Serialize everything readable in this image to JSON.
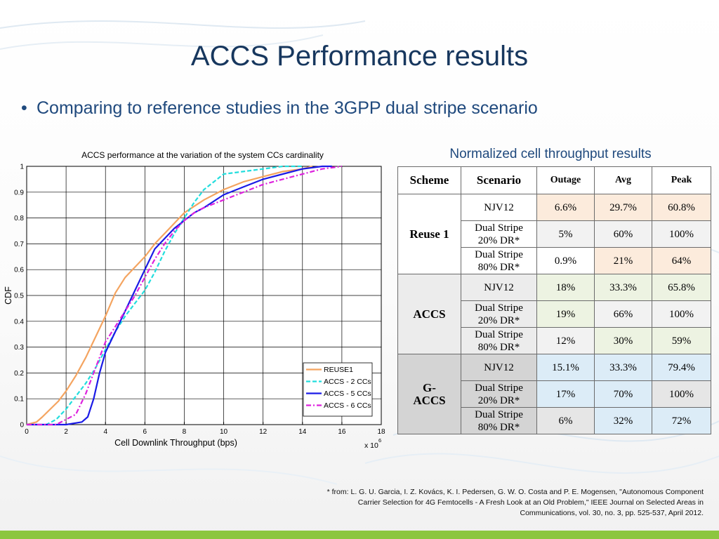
{
  "slide": {
    "title": "ACCS Performance results",
    "bullet": "Comparing to reference studies in the 3GPP dual stripe scenario",
    "footnote": "* from: L. G. U. Garcia, I. Z. Kovács, K. I. Pedersen, G. W. O. Costa and P. E. Mogensen, \"Autonomous Component Carrier Selection for 4G Femtocells - A Fresh Look at an Old Problem,\" IEEE Journal on Selected Areas in Communications, vol. 30, no. 3, pp. 525-537, April 2012.",
    "bottom_bar_color": "#8cc63f"
  },
  "chart_data": {
    "type": "line",
    "title": "ACCS performance at the variation of the system CCs cardinality",
    "xlabel": "Cell Downlink Throughput (bps)",
    "ylabel": "CDF",
    "x_multiplier": "x 10",
    "x_multiplier_exp": "6",
    "xlim": [
      0,
      18
    ],
    "ylim": [
      0,
      1
    ],
    "xticks": [
      "0",
      "2",
      "4",
      "6",
      "8",
      "10",
      "12",
      "14",
      "16",
      "18"
    ],
    "yticks": [
      "0",
      "0.1",
      "0.2",
      "0.3",
      "0.4",
      "0.5",
      "0.6",
      "0.7",
      "0.8",
      "0.9",
      "1"
    ],
    "grid": true,
    "legend_position": "bottom-right",
    "series": [
      {
        "name": "REUSE1",
        "color": "#f4a460",
        "dash": "solid",
        "x": [
          0,
          0.5,
          0.8,
          1.2,
          1.6,
          2.0,
          2.5,
          3.0,
          3.5,
          4.0,
          4.5,
          5.0,
          5.5,
          6.0,
          6.5,
          7.0,
          7.5,
          8.0,
          9.0,
          10.0,
          11.0,
          12.0,
          13.0,
          14.0,
          14.5
        ],
        "y": [
          0,
          0.01,
          0.03,
          0.06,
          0.09,
          0.13,
          0.19,
          0.26,
          0.34,
          0.42,
          0.51,
          0.57,
          0.61,
          0.65,
          0.7,
          0.74,
          0.78,
          0.82,
          0.87,
          0.91,
          0.94,
          0.96,
          0.98,
          0.99,
          1.0
        ]
      },
      {
        "name": "ACCS - 2 CCs",
        "color": "#22dddd",
        "dash": "dashed",
        "x": [
          0,
          1.0,
          1.5,
          2.0,
          2.5,
          3.0,
          3.5,
          4.0,
          4.5,
          5.0,
          5.5,
          6.0,
          6.5,
          7.0,
          7.5,
          8.0,
          8.5,
          9.0,
          9.5,
          10.0,
          11.0,
          12.0,
          13.0,
          14.0
        ],
        "y": [
          0,
          0,
          0.02,
          0.06,
          0.11,
          0.16,
          0.22,
          0.29,
          0.36,
          0.42,
          0.47,
          0.52,
          0.59,
          0.67,
          0.74,
          0.8,
          0.86,
          0.91,
          0.94,
          0.97,
          0.98,
          0.99,
          1.0,
          1.0
        ]
      },
      {
        "name": "ACCS - 5 CCs",
        "color": "#1a1ae6",
        "dash": "solid",
        "x": [
          0,
          2.0,
          2.8,
          3.1,
          3.4,
          3.7,
          4.0,
          4.5,
          5.0,
          5.5,
          6.0,
          6.5,
          7.0,
          7.5,
          8.0,
          8.5,
          9.0,
          10.0,
          11.0,
          12.0,
          13.0,
          14.0,
          15.0,
          15.5
        ],
        "y": [
          0,
          0,
          0.01,
          0.03,
          0.1,
          0.2,
          0.28,
          0.36,
          0.44,
          0.52,
          0.6,
          0.68,
          0.72,
          0.76,
          0.79,
          0.82,
          0.84,
          0.89,
          0.92,
          0.95,
          0.97,
          0.99,
          1.0,
          1.0
        ]
      },
      {
        "name": "ACCS - 6 CCs",
        "color": "#dd22dd",
        "dash": "dashdot",
        "x": [
          0,
          1.5,
          2.5,
          3.0,
          3.5,
          4.0,
          4.5,
          5.0,
          5.5,
          6.0,
          6.5,
          7.0,
          7.5,
          8.0,
          8.5,
          9.0,
          10.0,
          11.0,
          12.0,
          13.0,
          14.0,
          15.0,
          16.0
        ],
        "y": [
          0,
          0,
          0.04,
          0.12,
          0.22,
          0.32,
          0.38,
          0.44,
          0.5,
          0.57,
          0.64,
          0.7,
          0.75,
          0.79,
          0.82,
          0.84,
          0.87,
          0.9,
          0.93,
          0.95,
          0.97,
          0.99,
          1.0
        ]
      }
    ]
  },
  "table": {
    "caption": "Normalized cell throughput results",
    "headers": [
      "Scheme",
      "Scenario",
      "Outage",
      "Avg",
      "Peak"
    ],
    "groups": [
      {
        "scheme": "Reuse 1",
        "rows": [
          {
            "scenario_1": "NJV12",
            "scenario_2": "",
            "outage": "6.6%",
            "avg": "29.7%",
            "peak": "60.8%"
          },
          {
            "scenario_1": "Dual Stripe",
            "scenario_2": "20% DR*",
            "outage": "5%",
            "avg": "60%",
            "peak": "100%"
          },
          {
            "scenario_1": "Dual Stripe",
            "scenario_2": "80% DR*",
            "outage": "0.9%",
            "avg": "21%",
            "peak": "64%"
          }
        ]
      },
      {
        "scheme": "ACCS",
        "rows": [
          {
            "scenario_1": "NJV12",
            "scenario_2": "",
            "outage": "18%",
            "avg": "33.3%",
            "peak": "65.8%"
          },
          {
            "scenario_1": "Dual Stripe",
            "scenario_2": "20% DR*",
            "outage": "19%",
            "avg": "66%",
            "peak": "100%"
          },
          {
            "scenario_1": "Dual Stripe",
            "scenario_2": "80% DR*",
            "outage": "12%",
            "avg": "30%",
            "peak": "59%"
          }
        ]
      },
      {
        "scheme_1": "G-",
        "scheme_2": "ACCS",
        "rows": [
          {
            "scenario_1": "NJV12",
            "scenario_2": "",
            "outage": "15.1%",
            "avg": "33.3%",
            "peak": "79.4%"
          },
          {
            "scenario_1": "Dual Stripe",
            "scenario_2": "20% DR*",
            "outage": "17%",
            "avg": "70%",
            "peak": "100%"
          },
          {
            "scenario_1": "Dual Stripe",
            "scenario_2": "80% DR*",
            "outage": "6%",
            "avg": "32%",
            "peak": "72%"
          }
        ]
      }
    ]
  }
}
